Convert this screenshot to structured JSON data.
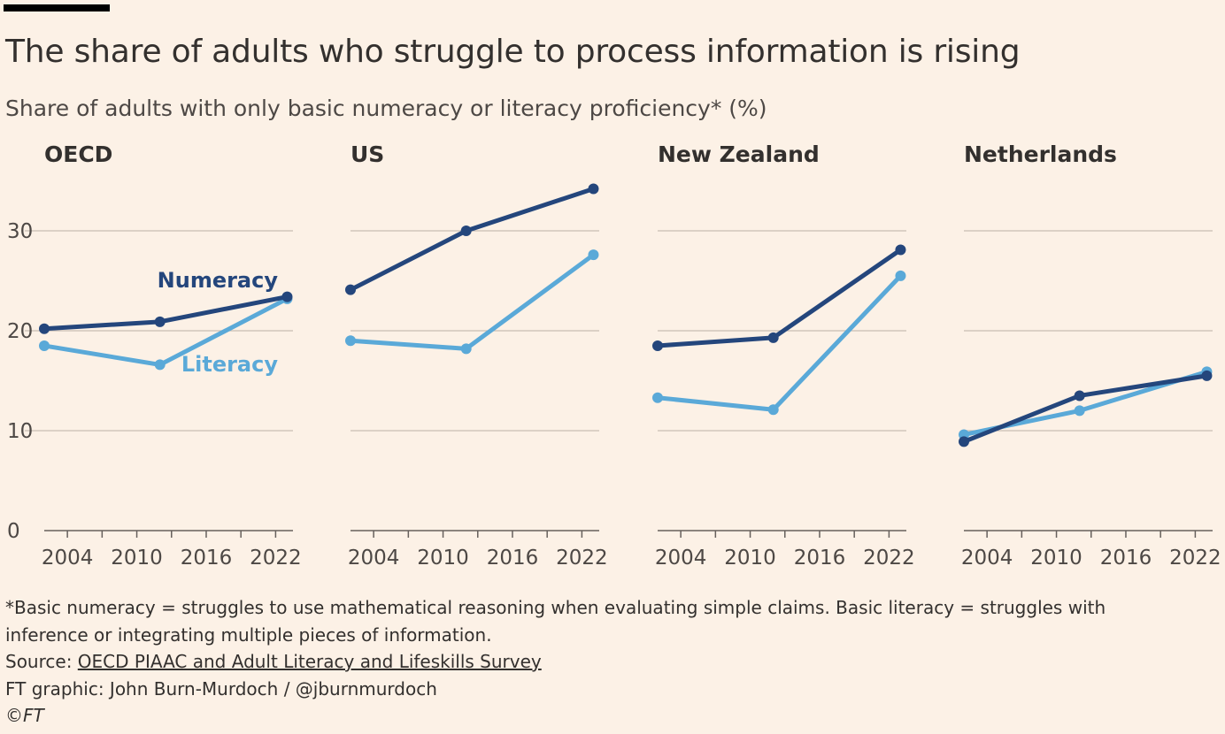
{
  "header": {
    "title": "The share of adults who struggle to process information is rising",
    "subtitle": "Share of adults with only basic numeracy or literacy proficiency* (%)"
  },
  "footer": {
    "note_line1": "*Basic numeracy = struggles to use mathematical reasoning when evaluating simple claims. Basic literacy = struggles with",
    "note_line2": "inference or integrating multiple pieces of information.",
    "source_prefix": "Source: ",
    "source_link": "OECD PIAAC and Adult Literacy and Lifeskills Survey",
    "credit": "FT graphic: John Burn-Murdoch / @jburnmurdoch",
    "copyright": "©FT"
  },
  "colors": {
    "numeracy": "#24467c",
    "literacy": "#5aa9d8",
    "grid": "#c9beb4",
    "axis": "#66605c"
  },
  "chart_data": [
    {
      "type": "line",
      "title": "OECD",
      "x_ticks": [
        2004,
        2010,
        2016,
        2022
      ],
      "ylim": [
        0,
        35
      ],
      "y_ticks": [
        0,
        10,
        20,
        30
      ],
      "grid": true,
      "series": [
        {
          "name": "Numeracy",
          "x": [
            2002,
            2012,
            2023
          ],
          "values": [
            20.2,
            20.9,
            23.4
          ]
        },
        {
          "name": "Literacy",
          "x": [
            2002,
            2012,
            2023
          ],
          "values": [
            18.5,
            16.6,
            23.2
          ]
        }
      ],
      "annotations": [
        {
          "text": "Numeracy",
          "series": "Numeracy"
        },
        {
          "text": "Literacy",
          "series": "Literacy"
        }
      ]
    },
    {
      "type": "line",
      "title": "US",
      "x_ticks": [
        2004,
        2010,
        2016,
        2022
      ],
      "ylim": [
        0,
        35
      ],
      "y_ticks": [
        0,
        10,
        20,
        30
      ],
      "grid": true,
      "series": [
        {
          "name": "Numeracy",
          "x": [
            2002,
            2012,
            2023
          ],
          "values": [
            24.1,
            30.0,
            34.2
          ]
        },
        {
          "name": "Literacy",
          "x": [
            2002,
            2012,
            2023
          ],
          "values": [
            19.0,
            18.2,
            27.6
          ]
        }
      ]
    },
    {
      "type": "line",
      "title": "New Zealand",
      "x_ticks": [
        2004,
        2010,
        2016,
        2022
      ],
      "ylim": [
        0,
        35
      ],
      "y_ticks": [
        0,
        10,
        20,
        30
      ],
      "grid": true,
      "series": [
        {
          "name": "Numeracy",
          "x": [
            2002,
            2012,
            2023
          ],
          "values": [
            18.5,
            19.3,
            28.1
          ]
        },
        {
          "name": "Literacy",
          "x": [
            2002,
            2012,
            2023
          ],
          "values": [
            13.3,
            12.1,
            25.5
          ]
        }
      ]
    },
    {
      "type": "line",
      "title": "Netherlands",
      "x_ticks": [
        2004,
        2010,
        2016,
        2022
      ],
      "ylim": [
        0,
        35
      ],
      "y_ticks": [
        0,
        10,
        20,
        30
      ],
      "grid": true,
      "series": [
        {
          "name": "Numeracy",
          "x": [
            2002,
            2012,
            2023
          ],
          "values": [
            8.9,
            13.5,
            15.5
          ]
        },
        {
          "name": "Literacy",
          "x": [
            2002,
            2012,
            2023
          ],
          "values": [
            9.6,
            12.0,
            15.9
          ]
        }
      ]
    }
  ]
}
